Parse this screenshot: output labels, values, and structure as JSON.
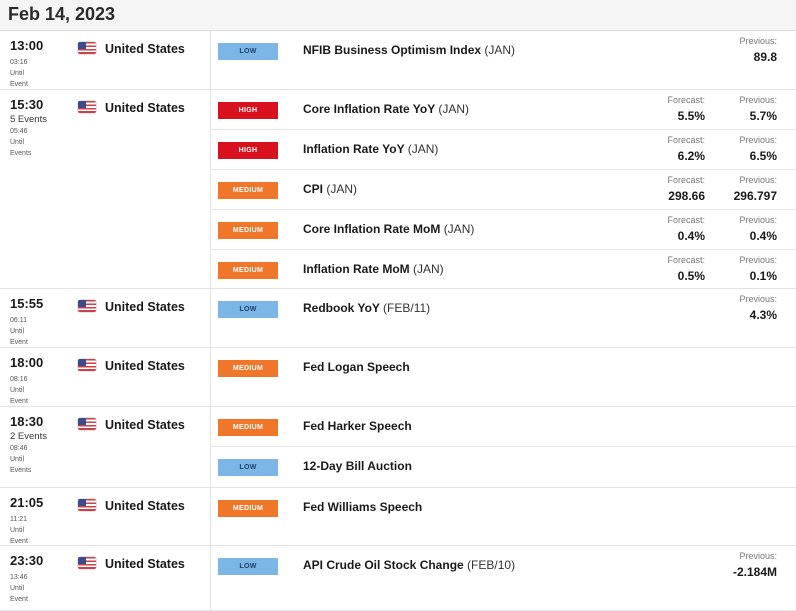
{
  "date": "Feb 14, 2023",
  "labels": {
    "forecast": "Forecast:",
    "previous": "Previous:"
  },
  "colors": {
    "low": "#7bb6e6",
    "medium": "#f0762a",
    "high": "#d9111e"
  },
  "groups": [
    {
      "time": "13:00",
      "events_count": "",
      "countdown": [
        "03:16",
        "Until",
        "Event"
      ],
      "country": "United States",
      "flag_icon": "us-flag-icon",
      "events": [
        {
          "impact": "LOW",
          "name": "NFIB Business Optimism Index",
          "period": "(JAN)",
          "forecast": "",
          "previous": "89.8"
        }
      ]
    },
    {
      "time": "15:30",
      "events_count": "5 Events",
      "countdown": [
        "05:46",
        "Until",
        "Events"
      ],
      "country": "United States",
      "flag_icon": "us-flag-icon",
      "events": [
        {
          "impact": "HIGH",
          "name": "Core Inflation Rate YoY",
          "period": "(JAN)",
          "forecast": "5.5%",
          "previous": "5.7%"
        },
        {
          "impact": "HIGH",
          "name": "Inflation Rate YoY",
          "period": "(JAN)",
          "forecast": "6.2%",
          "previous": "6.5%"
        },
        {
          "impact": "MEDIUM",
          "name": "CPI",
          "period": "(JAN)",
          "forecast": "298.66",
          "previous": "296.797"
        },
        {
          "impact": "MEDIUM",
          "name": "Core Inflation Rate MoM",
          "period": "(JAN)",
          "forecast": "0.4%",
          "previous": "0.4%"
        },
        {
          "impact": "MEDIUM",
          "name": "Inflation Rate MoM",
          "period": "(JAN)",
          "forecast": "0.5%",
          "previous": "0.1%"
        }
      ]
    },
    {
      "time": "15:55",
      "events_count": "",
      "countdown": [
        "06:11",
        "Until",
        "Event"
      ],
      "country": "United States",
      "flag_icon": "us-flag-icon",
      "events": [
        {
          "impact": "LOW",
          "name": "Redbook YoY",
          "period": "(FEB/11)",
          "forecast": "",
          "previous": "4.3%"
        }
      ]
    },
    {
      "time": "18:00",
      "events_count": "",
      "countdown": [
        "08:16",
        "Until",
        "Event"
      ],
      "country": "United States",
      "flag_icon": "us-flag-icon",
      "events": [
        {
          "impact": "MEDIUM",
          "name": "Fed Logan Speech",
          "period": "",
          "forecast": "",
          "previous": ""
        }
      ]
    },
    {
      "time": "18:30",
      "events_count": "2 Events",
      "countdown": [
        "08:46",
        "Until",
        "Events"
      ],
      "country": "United States",
      "flag_icon": "us-flag-icon",
      "events": [
        {
          "impact": "MEDIUM",
          "name": "Fed Harker Speech",
          "period": "",
          "forecast": "",
          "previous": ""
        },
        {
          "impact": "LOW",
          "name": "12-Day Bill Auction",
          "period": "",
          "forecast": "",
          "previous": ""
        }
      ]
    },
    {
      "time": "21:05",
      "events_count": "",
      "countdown": [
        "11:21",
        "Until",
        "Event"
      ],
      "country": "United States",
      "flag_icon": "us-flag-icon",
      "events": [
        {
          "impact": "MEDIUM",
          "name": "Fed Williams Speech",
          "period": "",
          "forecast": "",
          "previous": ""
        }
      ]
    },
    {
      "time": "23:30",
      "events_count": "",
      "countdown": [
        "13:46",
        "Until",
        "Event"
      ],
      "country": "United States",
      "flag_icon": "us-flag-icon",
      "events": [
        {
          "impact": "LOW",
          "name": "API Crude Oil Stock Change",
          "period": "(FEB/10)",
          "forecast": "",
          "previous": "-2.184M"
        }
      ]
    }
  ]
}
